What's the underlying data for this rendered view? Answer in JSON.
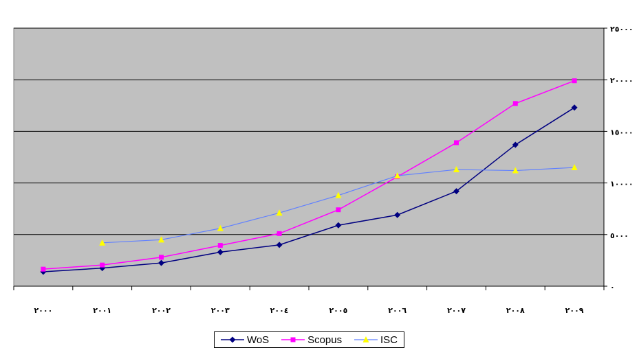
{
  "chart_data": {
    "type": "line",
    "x": [
      "٢٠٠٠",
      "٢٠٠١",
      "٢٠٠٢",
      "٢٠٠٣",
      "٢٠٠٤",
      "٢٠٠٥",
      "٢٠٠٦",
      "٢٠٠٧",
      "٢٠٠٨",
      "٢٠٠٩"
    ],
    "y_ticks": [
      0,
      5000,
      10000,
      15000,
      20000,
      25000
    ],
    "y_tick_labels": [
      "٠",
      "٥٠٠٠",
      "١٠٠٠٠",
      "١٥٠٠٠",
      "٢٠٠٠٠",
      "٢٥٠٠٠"
    ],
    "ylim": [
      0,
      25000
    ],
    "y_axis_side": "right",
    "grid": true,
    "legend_position": "bottom",
    "plot_background": "#c0c0c0",
    "series": [
      {
        "name": "WoS",
        "color": "#000080",
        "marker": "diamond",
        "values": [
          1400,
          1750,
          2250,
          3300,
          4000,
          5900,
          6900,
          9200,
          13700,
          17300
        ]
      },
      {
        "name": "Scopus",
        "color": "#ff00ff",
        "marker": "square",
        "values": [
          1650,
          2050,
          2800,
          3950,
          5100,
          7400,
          10600,
          13900,
          17700,
          19900
        ]
      },
      {
        "name": "ISC",
        "color": "#ffff00",
        "line_color": "#6080ff",
        "marker": "triangle",
        "values": [
          null,
          4200,
          4500,
          5600,
          7100,
          8800,
          10700,
          11300,
          11200,
          11500
        ]
      }
    ]
  }
}
